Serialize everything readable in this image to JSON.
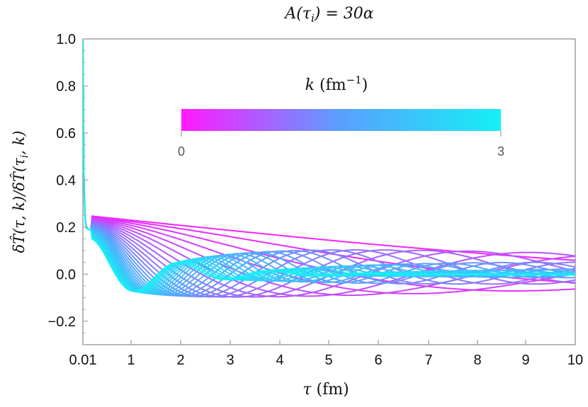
{
  "chart_data": {
    "type": "line",
    "title": "A(τ_i) = 30α",
    "xlabel": "τ (fm)",
    "ylabel": "δT̂(τ, k)/δT̂(τ_i, k)",
    "xlim": [
      0.01,
      10
    ],
    "ylim": [
      -0.3,
      1.0
    ],
    "x_tick_labels": [
      "0.01",
      "1",
      "2",
      "3",
      "4",
      "5",
      "6",
      "7",
      "8",
      "9",
      "10"
    ],
    "y_tick_labels": [
      "−0.2",
      "0.0",
      "0.2",
      "0.4",
      "0.6",
      "0.8",
      "1.0"
    ],
    "grid": false,
    "colorbar": {
      "label": "k (fm⁻¹)",
      "min": "0",
      "max": "3",
      "min_value": 0,
      "max_value": 3,
      "color_low": "#ff1aff",
      "color_mid": "#5aa0ff",
      "color_high": "#14f0f5",
      "placement": "top-center"
    },
    "series_note_k_range": [
      0.1,
      3.0
    ],
    "series_count": 30,
    "curve_model": {
      "initial_value": 1.0,
      "plateau_at_tau_0_2": 0.19,
      "early_dip_min": -0.1,
      "late_asymptote_large_k": 0.0
    }
  }
}
